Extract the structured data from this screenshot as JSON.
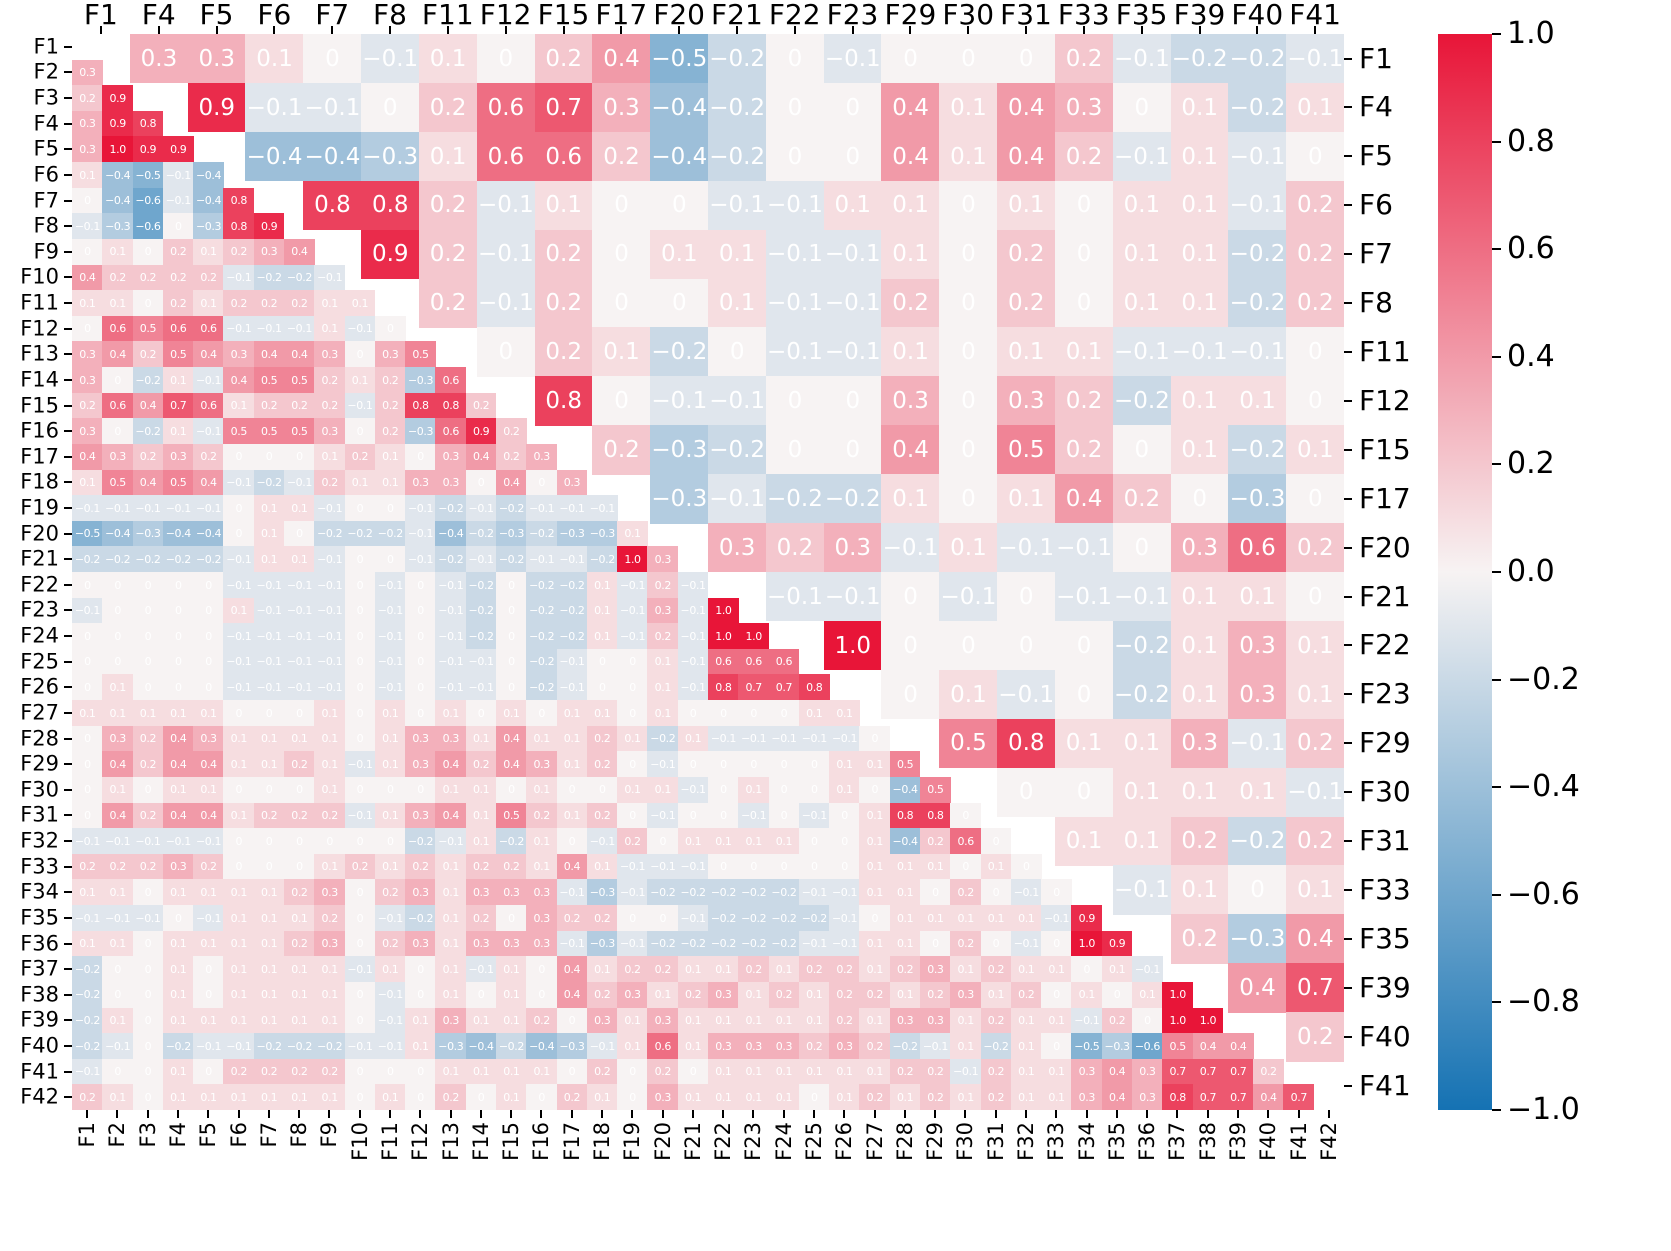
{
  "chart_data": {
    "type": "heatmap",
    "subtype": "correlation-matrix-dual-triangle",
    "title": "",
    "grid": false,
    "value_range": [
      -1.0,
      1.0
    ],
    "colormap": {
      "positive_max": "#e81538",
      "zero_mid": "#f7f3f3",
      "negative_min": "#1572b3"
    },
    "colorbar_position": "right",
    "colorbar_ticks": [
      1.0,
      0.8,
      0.6,
      0.4,
      0.2,
      0.0,
      -0.2,
      -0.4,
      -0.6,
      -0.8,
      -1.0
    ],
    "bottom_left_axis_features": [
      "F1",
      "F2",
      "F3",
      "F4",
      "F5",
      "F6",
      "F7",
      "F8",
      "F9",
      "F10",
      "F11",
      "F12",
      "F13",
      "F14",
      "F15",
      "F16",
      "F17",
      "F18",
      "F19",
      "F20",
      "F21",
      "F22",
      "F23",
      "F24",
      "F25",
      "F26",
      "F27",
      "F28",
      "F29",
      "F30",
      "F31",
      "F32",
      "F33",
      "F34",
      "F35",
      "F36",
      "F37",
      "F38",
      "F39",
      "F40",
      "F41",
      "F42"
    ],
    "top_right_axis_features": [
      "F1",
      "F4",
      "F5",
      "F6",
      "F7",
      "F8",
      "F11",
      "F12",
      "F15",
      "F17",
      "F20",
      "F21",
      "F22",
      "F23",
      "F29",
      "F30",
      "F31",
      "F33",
      "F35",
      "F39",
      "F40",
      "F41"
    ],
    "lower_triangle_note": "Row k (0-based) holds correlations of feature F(k+2) with F1..F(k+1)",
    "lower_triangle": [
      [
        0.3
      ],
      [
        0.2,
        0.9
      ],
      [
        0.3,
        0.9,
        0.8
      ],
      [
        0.3,
        1.0,
        0.9,
        0.9
      ],
      [
        0.1,
        -0.4,
        -0.5,
        -0.1,
        -0.4
      ],
      [
        0,
        -0.4,
        -0.6,
        -0.1,
        -0.4,
        0.8
      ],
      [
        -0.1,
        -0.3,
        -0.6,
        0,
        -0.3,
        0.8,
        0.9
      ],
      [
        0,
        0.1,
        0,
        0.2,
        0.1,
        0.2,
        0.3,
        0.4
      ],
      [
        0.4,
        0.2,
        0.2,
        0.2,
        0.2,
        -0.1,
        -0.2,
        -0.2,
        -0.1
      ],
      [
        0.1,
        0.1,
        0,
        0.2,
        0.1,
        0.2,
        0.2,
        0.2,
        0.1,
        0.1
      ],
      [
        0,
        0.6,
        0.5,
        0.6,
        0.6,
        -0.1,
        -0.1,
        -0.1,
        0.1,
        -0.1,
        0
      ],
      [
        0.3,
        0.4,
        0.2,
        0.5,
        0.4,
        0.3,
        0.4,
        0.4,
        0.3,
        0,
        0.3,
        0.5
      ],
      [
        0.3,
        0,
        -0.2,
        0.1,
        -0.1,
        0.4,
        0.5,
        0.5,
        0.2,
        0.1,
        0.2,
        -0.3,
        0.6
      ],
      [
        0.2,
        0.6,
        0.4,
        0.7,
        0.6,
        0.1,
        0.2,
        0.2,
        0.2,
        -0.1,
        0.2,
        0.8,
        0.8,
        0.2
      ],
      [
        0.3,
        0,
        -0.2,
        0.1,
        -0.1,
        0.5,
        0.5,
        0.5,
        0.3,
        0,
        0.2,
        -0.3,
        0.6,
        0.9,
        0.2
      ],
      [
        0.4,
        0.3,
        0.2,
        0.3,
        0.2,
        0,
        0,
        0,
        0.1,
        0.2,
        0.1,
        0,
        0.3,
        0.4,
        0.2,
        0.3
      ],
      [
        0.1,
        0.5,
        0.4,
        0.5,
        0.4,
        -0.1,
        -0.2,
        -0.1,
        0.2,
        0.1,
        0.1,
        0.3,
        0.3,
        0,
        0.4,
        0,
        0.3
      ],
      [
        -0.1,
        -0.1,
        -0.1,
        -0.1,
        -0.1,
        0,
        0.1,
        0.1,
        -0.1,
        0,
        0,
        -0.1,
        -0.2,
        -0.1,
        -0.2,
        -0.1,
        -0.1,
        -0.1
      ],
      [
        -0.5,
        -0.4,
        -0.3,
        -0.4,
        -0.4,
        0,
        0.1,
        0,
        -0.2,
        -0.2,
        -0.2,
        -0.1,
        -0.4,
        -0.2,
        -0.3,
        -0.2,
        -0.3,
        -0.3,
        0.1
      ],
      [
        -0.2,
        -0.2,
        -0.2,
        -0.2,
        -0.2,
        -0.1,
        0.1,
        0.1,
        -0.1,
        0,
        0,
        -0.1,
        -0.2,
        -0.1,
        -0.2,
        -0.1,
        -0.1,
        -0.2,
        1.0,
        0.3
      ],
      [
        0,
        0,
        0,
        0,
        0,
        -0.1,
        -0.1,
        -0.1,
        -0.1,
        0,
        -0.1,
        0,
        -0.1,
        -0.2,
        0,
        -0.2,
        -0.2,
        0.1,
        -0.1,
        0.2,
        -0.1
      ],
      [
        -0.1,
        0,
        0,
        0,
        0,
        0.1,
        -0.1,
        -0.1,
        -0.1,
        0,
        -0.1,
        0,
        -0.1,
        -0.2,
        0,
        -0.2,
        -0.2,
        0.1,
        -0.1,
        0.3,
        -0.1,
        1.0
      ],
      [
        0,
        0,
        0,
        0,
        0,
        -0.1,
        -0.1,
        -0.1,
        -0.1,
        0,
        -0.1,
        0,
        -0.1,
        -0.2,
        0,
        -0.2,
        -0.2,
        0.1,
        -0.1,
        0.2,
        -0.1,
        1.0,
        1.0
      ],
      [
        0,
        0,
        0,
        0,
        0,
        -0.1,
        -0.1,
        -0.1,
        -0.1,
        0,
        -0.1,
        0,
        -0.1,
        -0.1,
        0,
        -0.2,
        -0.1,
        0,
        0,
        0.1,
        -0.1,
        0.6,
        0.6,
        0.6
      ],
      [
        0,
        0.1,
        0,
        0,
        0,
        -0.1,
        -0.1,
        -0.1,
        -0.1,
        0,
        -0.1,
        0,
        -0.1,
        -0.1,
        0,
        -0.2,
        -0.1,
        0,
        0,
        0.1,
        -0.1,
        0.8,
        0.7,
        0.7,
        0.8
      ],
      [
        0.1,
        0.1,
        0.1,
        0.1,
        0.1,
        0,
        0,
        0,
        0.1,
        0,
        0.1,
        0,
        0.1,
        0,
        0.1,
        0,
        0.1,
        0.1,
        0,
        0.1,
        0,
        0,
        0,
        0,
        0.1,
        0.1
      ],
      [
        0,
        0.3,
        0.2,
        0.4,
        0.3,
        0.1,
        0.1,
        0.1,
        0.1,
        0,
        0.1,
        0.3,
        0.3,
        0.1,
        0.4,
        0.1,
        0.1,
        0.2,
        0.1,
        -0.2,
        0.1,
        -0.1,
        -0.1,
        -0.1,
        -0.1,
        -0.1,
        0
      ],
      [
        0,
        0.4,
        0.2,
        0.4,
        0.4,
        0.1,
        0.1,
        0.2,
        0.1,
        -0.1,
        0.1,
        0.3,
        0.4,
        0.2,
        0.4,
        0.3,
        0.1,
        0.2,
        0,
        -0.1,
        0,
        0,
        0,
        0,
        0,
        0.1,
        0.1,
        0.5
      ],
      [
        0,
        0.1,
        0,
        0.1,
        0.1,
        0,
        0,
        0,
        0.1,
        0,
        0,
        0,
        0.1,
        0.1,
        0,
        0.1,
        0,
        0,
        0.1,
        0.1,
        -0.1,
        0,
        0.1,
        0,
        0,
        0.1,
        0,
        -0.4,
        0.5
      ],
      [
        0,
        0.4,
        0.2,
        0.4,
        0.4,
        0.1,
        0.2,
        0.2,
        0.2,
        -0.1,
        0.1,
        0.3,
        0.4,
        0.1,
        0.5,
        0.2,
        0.1,
        0.2,
        0,
        -0.1,
        0,
        0,
        -0.1,
        0,
        -0.1,
        0,
        0.1,
        0.8,
        0.8,
        0
      ],
      [
        -0.1,
        -0.1,
        -0.1,
        -0.1,
        -0.1,
        0,
        0,
        0,
        0,
        0,
        0,
        -0.2,
        -0.1,
        0.1,
        -0.2,
        0.1,
        0,
        -0.1,
        0.2,
        0,
        0.1,
        0.1,
        0.1,
        0.1,
        0,
        0,
        0.1,
        -0.4,
        0.2,
        0.6,
        0
      ],
      [
        0.2,
        0.2,
        0.2,
        0.3,
        0.2,
        0,
        0,
        0,
        0.1,
        0.2,
        0.1,
        0.2,
        0.1,
        0.2,
        0.2,
        0.1,
        0.4,
        0.1,
        -0.1,
        -0.1,
        -0.1,
        0,
        0,
        0,
        0,
        0,
        0.1,
        0.1,
        0.1,
        0,
        0.1,
        0
      ],
      [
        0.1,
        0.1,
        0,
        0.1,
        0.1,
        0.1,
        0.1,
        0.2,
        0.3,
        0,
        0.2,
        0.3,
        0.1,
        0.3,
        0.3,
        0.3,
        -0.1,
        -0.3,
        -0.1,
        -0.2,
        -0.2,
        -0.2,
        -0.2,
        -0.2,
        -0.1,
        -0.1,
        0.1,
        0.1,
        0,
        0.2,
        0,
        -0.1,
        0
      ],
      [
        -0.1,
        -0.1,
        -0.1,
        0,
        -0.1,
        0.1,
        0.1,
        0.1,
        0.2,
        0,
        -0.1,
        -0.2,
        0.1,
        0.2,
        0,
        0.3,
        0.2,
        0.2,
        0,
        0,
        -0.1,
        -0.2,
        -0.2,
        -0.2,
        -0.2,
        -0.1,
        0,
        0.1,
        0.1,
        0.1,
        0.1,
        0.1,
        -0.1,
        0.9
      ],
      [
        0.1,
        0.1,
        0,
        0.1,
        0.1,
        0.1,
        0.1,
        0.2,
        0.3,
        0,
        0.2,
        0.3,
        0.1,
        0.3,
        0.3,
        0.3,
        -0.1,
        -0.3,
        -0.1,
        -0.2,
        -0.2,
        -0.2,
        -0.2,
        -0.2,
        -0.1,
        -0.1,
        0.1,
        0.1,
        0,
        0.2,
        0,
        -0.1,
        0,
        1.0,
        0.9
      ],
      [
        -0.2,
        0,
        0,
        0.1,
        0,
        0.1,
        0.1,
        0.1,
        0.1,
        -0.1,
        0.1,
        0,
        0.1,
        -0.1,
        0.1,
        0,
        0.4,
        0.1,
        0.2,
        0.2,
        0.1,
        0.1,
        0.2,
        0.1,
        0.2,
        0.2,
        0.1,
        0.2,
        0.3,
        0.1,
        0.2,
        0.1,
        0.1,
        0,
        0.1,
        -0.1
      ],
      [
        -0.2,
        0,
        0,
        0.1,
        0,
        0.1,
        0.1,
        0.1,
        0.1,
        0,
        -0.1,
        0,
        0.1,
        0,
        0.1,
        0,
        0.4,
        0.2,
        0.3,
        0.1,
        0.2,
        0.3,
        0.1,
        0.2,
        0.1,
        0.2,
        0.2,
        0.1,
        0.2,
        0.3,
        0.1,
        0.2,
        0,
        0.1,
        0,
        0.1,
        1.0
      ],
      [
        -0.2,
        0.1,
        0,
        0.1,
        0.1,
        0.1,
        0.1,
        0.1,
        0.1,
        0,
        -0.1,
        0.1,
        0.3,
        0.1,
        0.1,
        0.2,
        0,
        0.3,
        0.1,
        0.3,
        0.1,
        0.1,
        0.1,
        0.1,
        0.1,
        0.2,
        0.1,
        0.3,
        0.3,
        0.1,
        0.2,
        0.1,
        0.1,
        -0.1,
        0.2,
        0,
        1.0,
        1.0
      ],
      [
        -0.2,
        -0.1,
        0,
        -0.2,
        -0.1,
        -0.1,
        -0.2,
        -0.2,
        -0.2,
        -0.1,
        -0.1,
        0.1,
        -0.3,
        -0.4,
        -0.2,
        -0.4,
        -0.3,
        -0.1,
        0.1,
        0.6,
        0.1,
        0.3,
        0.3,
        0.3,
        0.2,
        0.3,
        0.2,
        -0.2,
        -0.1,
        0.1,
        -0.2,
        0.1,
        0,
        -0.5,
        -0.3,
        -0.6,
        0.5,
        0.4,
        0.4
      ],
      [
        -0.1,
        0,
        0,
        0.1,
        0,
        0.2,
        0.2,
        0.2,
        0.2,
        0,
        0,
        0,
        0.1,
        0.1,
        0.1,
        0.1,
        0,
        0.2,
        0,
        0.2,
        0,
        0.1,
        0.1,
        0.1,
        0.1,
        0.1,
        0.1,
        0.2,
        0.2,
        -0.1,
        0.2,
        0.1,
        0.1,
        0.3,
        0.4,
        0.3,
        0.7,
        0.7,
        0.7,
        0.2
      ],
      [
        0.2,
        0.1,
        0,
        0.1,
        0.1,
        0.1,
        0.1,
        0.1,
        0.1,
        0,
        0.1,
        0,
        0.2,
        0,
        0.1,
        0,
        0.2,
        0.1,
        0,
        0.3,
        0.1,
        0.1,
        0.1,
        0.1,
        0,
        0.1,
        0.2,
        0.1,
        0.2,
        0.1,
        0.2,
        0.1,
        0.1,
        0.3,
        0.4,
        0.3,
        0.8,
        0.7,
        0.7,
        0.4,
        0.7
      ]
    ],
    "upper_triangle_note": "Row i (0-based) holds correlations of top_right_axis_features[i] with the subsequent selected features",
    "upper_triangle": [
      [
        0.3,
        0.3,
        0.1,
        0,
        -0.1,
        0.1,
        0,
        0.2,
        0.4,
        -0.5,
        -0.2,
        0,
        -0.1,
        0,
        0,
        0,
        0.2,
        -0.1,
        -0.2,
        -0.2,
        -0.1
      ],
      [
        0.9,
        -0.1,
        -0.1,
        0,
        0.2,
        0.6,
        0.7,
        0.3,
        -0.4,
        -0.2,
        0,
        0,
        0.4,
        0.1,
        0.4,
        0.3,
        0,
        0.1,
        -0.2,
        0.1
      ],
      [
        -0.4,
        -0.4,
        -0.3,
        0.1,
        0.6,
        0.6,
        0.2,
        -0.4,
        -0.2,
        0,
        0,
        0.4,
        0.1,
        0.4,
        0.2,
        -0.1,
        0.1,
        -0.1,
        0
      ],
      [
        0.8,
        0.8,
        0.2,
        -0.1,
        0.1,
        0,
        0,
        -0.1,
        -0.1,
        0.1,
        0.1,
        0,
        0.1,
        0,
        0.1,
        0.1,
        -0.1,
        0.2
      ],
      [
        0.9,
        0.2,
        -0.1,
        0.2,
        0,
        0.1,
        0.1,
        -0.1,
        -0.1,
        0.1,
        0,
        0.2,
        0,
        0.1,
        0.1,
        -0.2,
        0.2
      ],
      [
        0.2,
        -0.1,
        0.2,
        0,
        0,
        0.1,
        -0.1,
        -0.1,
        0.2,
        0,
        0.2,
        0,
        0.1,
        0.1,
        -0.2,
        0.2
      ],
      [
        0,
        0.2,
        0.1,
        -0.2,
        0,
        -0.1,
        -0.1,
        0.1,
        0,
        0.1,
        0.1,
        -0.1,
        -0.1,
        -0.1,
        0
      ],
      [
        0.8,
        0,
        -0.1,
        -0.1,
        0,
        0,
        0.3,
        0,
        0.3,
        0.2,
        -0.2,
        0.1,
        0.1,
        0
      ],
      [
        0.2,
        -0.3,
        -0.2,
        0,
        0,
        0.4,
        0,
        0.5,
        0.2,
        0,
        0.1,
        -0.2,
        0.1
      ],
      [
        -0.3,
        -0.1,
        -0.2,
        -0.2,
        0.1,
        0,
        0.1,
        0.4,
        0.2,
        0,
        -0.3,
        0
      ],
      [
        0.3,
        0.2,
        0.3,
        -0.1,
        0.1,
        -0.1,
        -0.1,
        0,
        0.3,
        0.6,
        0.2
      ],
      [
        -0.1,
        -0.1,
        0,
        -0.1,
        0,
        -0.1,
        -0.1,
        0.1,
        0.1,
        0
      ],
      [
        1.0,
        0,
        0,
        0,
        0,
        -0.2,
        0.1,
        0.3,
        0.1
      ],
      [
        0,
        0.1,
        -0.1,
        0,
        -0.2,
        0.1,
        0.3,
        0.1
      ],
      [
        0.5,
        0.8,
        0.1,
        0.1,
        0.3,
        -0.1,
        0.2
      ],
      [
        0,
        0,
        0.1,
        0.1,
        0.1,
        -0.1
      ],
      [
        0.1,
        0.1,
        0.2,
        -0.2,
        0.2
      ],
      [
        -0.1,
        0.1,
        0,
        0.1
      ],
      [
        0.2,
        -0.3,
        0.4
      ],
      [
        0.4,
        0.7
      ],
      [
        0.2
      ],
      []
    ]
  }
}
